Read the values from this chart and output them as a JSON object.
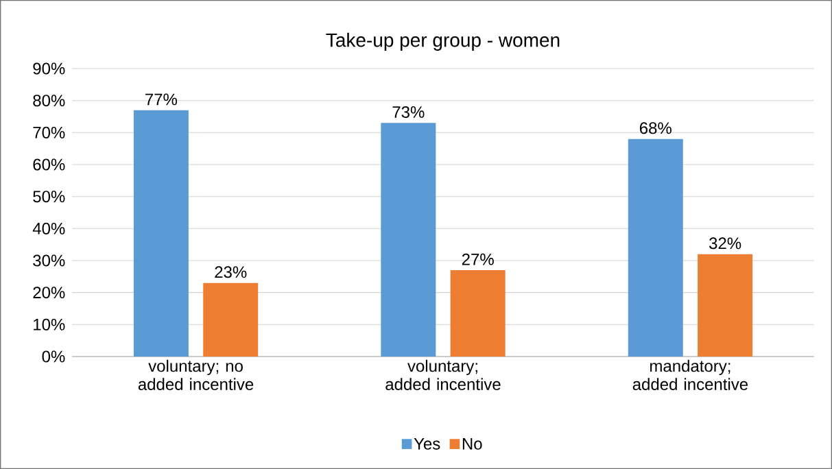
{
  "chart_data": {
    "type": "bar",
    "title": "Take-up per group - women",
    "categories": [
      "voluntary; no added incentive",
      "voluntary; added incentive",
      "mandatory; added incentive"
    ],
    "series": [
      {
        "name": "Yes",
        "color": "#5b9bd5",
        "values": [
          77,
          73,
          68
        ],
        "value_labels": [
          "77%",
          "73%",
          "68%"
        ]
      },
      {
        "name": "No",
        "color": "#ed7d31",
        "values": [
          23,
          27,
          32
        ],
        "value_labels": [
          "23%",
          "27%",
          "32%"
        ]
      }
    ],
    "ylim": [
      0,
      90
    ],
    "yticks": [
      {
        "value": 0,
        "label": "0%"
      },
      {
        "value": 10,
        "label": "10%"
      },
      {
        "value": 20,
        "label": "20%"
      },
      {
        "value": 30,
        "label": "30%"
      },
      {
        "value": 40,
        "label": "40%"
      },
      {
        "value": 50,
        "label": "50%"
      },
      {
        "value": 60,
        "label": "60%"
      },
      {
        "value": 70,
        "label": "70%"
      },
      {
        "value": 80,
        "label": "80%"
      },
      {
        "value": 90,
        "label": "90%"
      }
    ],
    "grid": "y",
    "legend": "bottom"
  }
}
